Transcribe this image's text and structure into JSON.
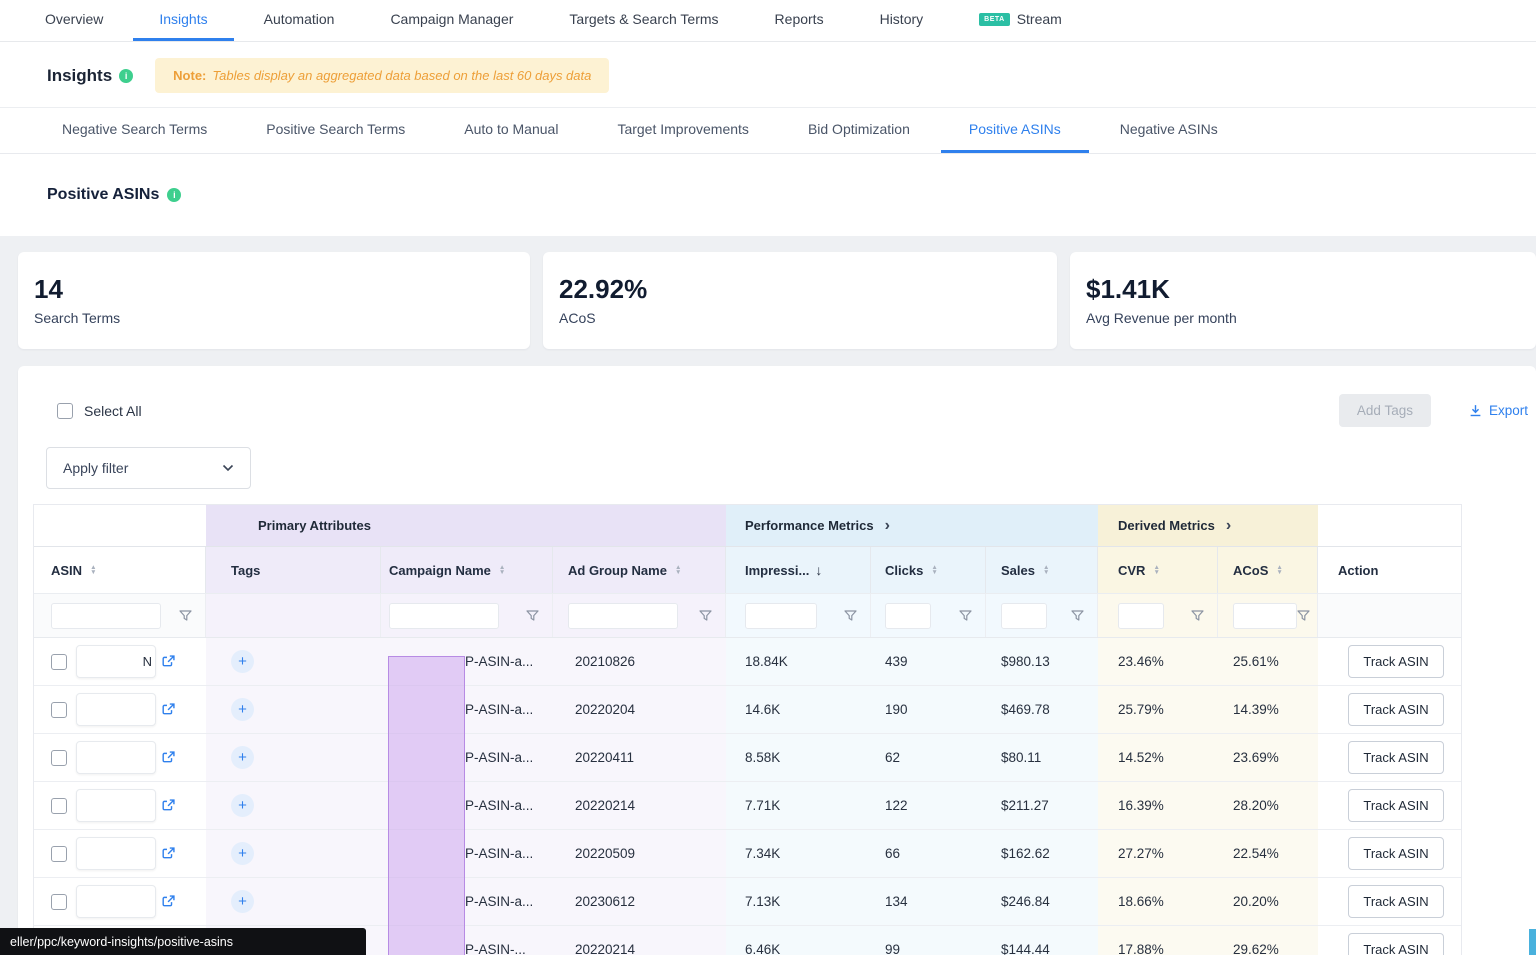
{
  "colors": {
    "accent_blue": "#2f80ed",
    "note_orange": "#ed9f38",
    "info_green": "#3ecf8e",
    "beta_teal": "#2bbfa4",
    "group_purple": "#e8e2f6",
    "group_blue": "#e0eff9",
    "group_yellow": "#f7f1d8",
    "overlay_purple": "#c9a0ee"
  },
  "nav": {
    "items": [
      {
        "label": "Overview",
        "active": false
      },
      {
        "label": "Insights",
        "active": true
      },
      {
        "label": "Automation",
        "active": false
      },
      {
        "label": "Campaign Manager",
        "active": false
      },
      {
        "label": "Targets & Search Terms",
        "active": false
      },
      {
        "label": "Reports",
        "active": false
      },
      {
        "label": "History",
        "active": false
      },
      {
        "label": "Stream",
        "active": false,
        "badge": "BETA"
      }
    ]
  },
  "insights_header": {
    "title": "Insights",
    "note_label": "Note:",
    "note_text": "Tables display an aggregated data based on the last 60 days data"
  },
  "subtabs": {
    "items": [
      {
        "label": "Negative Search Terms",
        "active": false
      },
      {
        "label": "Positive Search Terms",
        "active": false
      },
      {
        "label": "Auto to Manual",
        "active": false
      },
      {
        "label": "Target Improvements",
        "active": false
      },
      {
        "label": "Bid Optimization",
        "active": false
      },
      {
        "label": "Positive ASINs",
        "active": true
      },
      {
        "label": "Negative ASINs",
        "active": false
      }
    ]
  },
  "section": {
    "title": "Positive ASINs"
  },
  "stats": {
    "cards": [
      {
        "value": "14",
        "label": "Search Terms"
      },
      {
        "value": "22.92%",
        "label": "ACoS"
      },
      {
        "value": "$1.41K",
        "label": "Avg Revenue per month"
      }
    ]
  },
  "toolbar": {
    "select_all_label": "Select All",
    "apply_filter_label": "Apply filter",
    "add_tags_label": "Add Tags",
    "export_label": "Export"
  },
  "table": {
    "group_headers": [
      {
        "label": "Primary Attributes"
      },
      {
        "label": "Performance Metrics"
      },
      {
        "label": "Derived Metrics"
      }
    ],
    "columns": [
      {
        "label": "ASIN"
      },
      {
        "label": "Tags"
      },
      {
        "label": "Campaign Name"
      },
      {
        "label": "Ad Group Name"
      },
      {
        "label": "Impressi...",
        "sorted": "desc"
      },
      {
        "label": "Clicks"
      },
      {
        "label": "Sales"
      },
      {
        "label": "CVR"
      },
      {
        "label": "ACoS"
      },
      {
        "label": "Action"
      }
    ],
    "add_tag_glyph": "+",
    "action_button_label": "Track ASIN",
    "rows": [
      {
        "asin_visible": "N",
        "campaign": "P-ASIN-a...",
        "ad_group": "20210826",
        "impressions": "18.84K",
        "clicks": "439",
        "sales": "$980.13",
        "cvr": "23.46%",
        "acos": "25.61%"
      },
      {
        "asin_visible": "",
        "campaign": "P-ASIN-a...",
        "ad_group": "20220204",
        "impressions": "14.6K",
        "clicks": "190",
        "sales": "$469.78",
        "cvr": "25.79%",
        "acos": "14.39%"
      },
      {
        "asin_visible": "",
        "campaign": "P-ASIN-a...",
        "ad_group": "20220411",
        "impressions": "8.58K",
        "clicks": "62",
        "sales": "$80.11",
        "cvr": "14.52%",
        "acos": "23.69%"
      },
      {
        "asin_visible": "",
        "campaign": "P-ASIN-a...",
        "ad_group": "20220214",
        "impressions": "7.71K",
        "clicks": "122",
        "sales": "$211.27",
        "cvr": "16.39%",
        "acos": "28.20%"
      },
      {
        "asin_visible": "",
        "campaign": "P-ASIN-a...",
        "ad_group": "20220509",
        "impressions": "7.34K",
        "clicks": "66",
        "sales": "$162.62",
        "cvr": "27.27%",
        "acos": "22.54%"
      },
      {
        "asin_visible": "",
        "campaign": "P-ASIN-a...",
        "ad_group": "20230612",
        "impressions": "7.13K",
        "clicks": "134",
        "sales": "$246.84",
        "cvr": "18.66%",
        "acos": "20.20%"
      },
      {
        "asin_visible": "",
        "campaign": "P-ASIN-...",
        "ad_group": "20220214",
        "impressions": "6.46K",
        "clicks": "99",
        "sales": "$144.44",
        "cvr": "17.88%",
        "acos": "29.62%"
      }
    ]
  },
  "statusbar": {
    "url": "eller/ppc/keyword-insights/positive-asins"
  }
}
